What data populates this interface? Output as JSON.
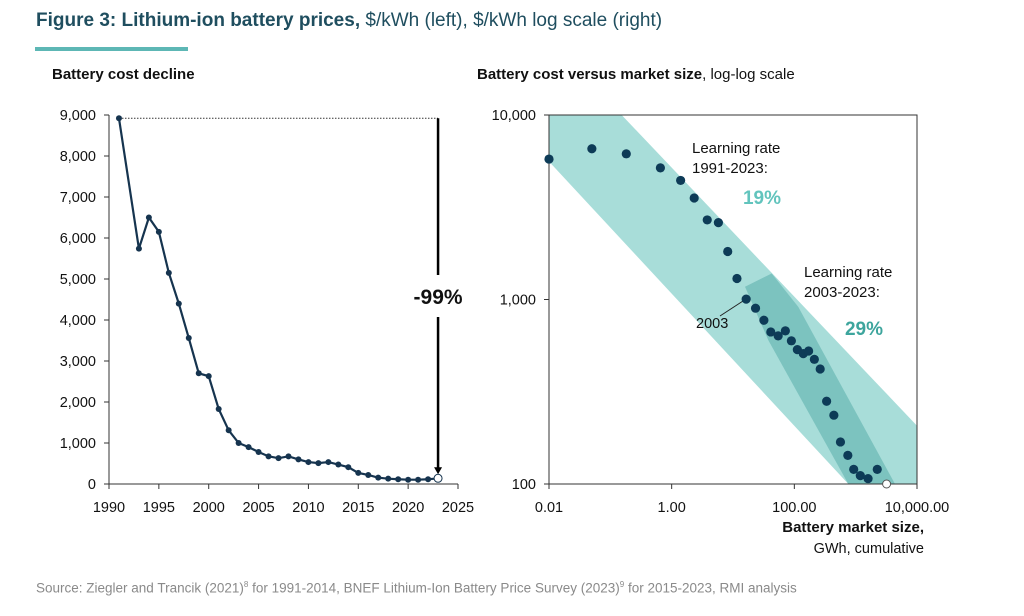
{
  "figure": {
    "title_bold": "Figure 3: Lithium-ion battery prices,",
    "title_rest": " $/kWh (left), $/kWh log scale (right)",
    "source_parts": [
      "Source: Ziegler and Trancik (2021)",
      "8",
      " for 1991-2014, BNEF Lithium-Ion Battery Price Survey (2023)",
      "9",
      " for 2015-2023, RMI analysis"
    ],
    "colors": {
      "title": "#1f4e5f",
      "accent_bar": "#5db7b5",
      "line": "#16344f",
      "dot": "#0d3b57",
      "band_light": "#a8ddd9",
      "band_dark": "#6db9b6",
      "rate19": "#62c4bd",
      "rate29": "#3da59d"
    }
  },
  "chart_data": [
    {
      "type": "line",
      "title": "Battery cost decline",
      "xlim": [
        1990,
        2025
      ],
      "ylim": [
        0,
        9000
      ],
      "xticks": [
        1990,
        1995,
        2000,
        2005,
        2010,
        2015,
        2020,
        2025
      ],
      "xtick_labels": [
        "1990",
        "1995",
        "2000",
        "2005",
        "2010",
        "2015",
        "2020",
        "2025"
      ],
      "yticks": [
        0,
        1000,
        2000,
        3000,
        4000,
        5000,
        6000,
        7000,
        8000,
        9000
      ],
      "ytick_labels": [
        "0",
        "1,000",
        "2,000",
        "3,000",
        "4,000",
        "5,000",
        "6,000",
        "7,000",
        "8,000",
        "9,000"
      ],
      "grid": false,
      "x": [
        1991,
        1993,
        1994,
        1995,
        1996,
        1997,
        1998,
        1999,
        2000,
        2001,
        2002,
        2003,
        2004,
        2005,
        2006,
        2007,
        2008,
        2009,
        2010,
        2011,
        2012,
        2013,
        2014,
        2015,
        2016,
        2017,
        2018,
        2019,
        2020,
        2021,
        2022,
        2023
      ],
      "y": [
        8920,
        5740,
        6500,
        6150,
        5150,
        4400,
        3560,
        2700,
        2630,
        1830,
        1310,
        1000,
        900,
        780,
        675,
        630,
        675,
        600,
        535,
        510,
        535,
        475,
        410,
        270,
        220,
        155,
        130,
        115,
        105,
        105,
        115,
        139
      ],
      "last_point_open": true,
      "annotation": {
        "label": "-99%",
        "from": 8920,
        "to": 139,
        "x": 2023
      }
    },
    {
      "type": "scatter",
      "title_bold": "Battery cost versus market size",
      "title_rest": ", log-log scale",
      "xscale": "log",
      "yscale": "log",
      "xlim": [
        0.01,
        10000
      ],
      "ylim": [
        100,
        10000
      ],
      "xticks": [
        0.01,
        1,
        100,
        10000
      ],
      "xtick_labels": [
        "0.01",
        "1.00",
        "100.00",
        "10,000.00"
      ],
      "yticks": [
        100,
        1000,
        10000
      ],
      "ytick_labels": [
        "100",
        "1,000",
        "10,000"
      ],
      "xlabel_bold": "Battery market size,",
      "xlabel_rest": "GWh, cumulative",
      "grid": false,
      "x": [
        0.01,
        0.05,
        0.182,
        0.655,
        1.4,
        2.33,
        3.8,
        5.78,
        8.2,
        11.6,
        16.4,
        23.3,
        31.9,
        41.3,
        54.5,
        71.4,
        89.5,
        112,
        140,
        171,
        212,
        264,
        336,
        441,
        565,
        745,
        929,
        1191,
        1592,
        2249,
        3192
      ],
      "y": [
        5770,
        6560,
        6160,
        5170,
        4420,
        3550,
        2700,
        2610,
        1820,
        1300,
        1005,
        897,
        772,
        667,
        635,
        676,
        597,
        535,
        509,
        526,
        474,
        420,
        281,
        236,
        169,
        143,
        120,
        111,
        107,
        120,
        100
      ],
      "last_point_open": true,
      "bands": [
        {
          "name": "Learning rate 1991-2023",
          "polygon": [
            [
              0.01,
              10000
            ],
            [
              0.153,
              10000
            ],
            [
              10000,
              207
            ],
            [
              10000,
              100
            ],
            [
              760,
              100
            ],
            [
              0.01,
              5600
            ]
          ]
        },
        {
          "name": "Learning rate 2003-2023",
          "polygon": [
            [
              15.7,
              1172
            ],
            [
              42.7,
              1384
            ],
            [
              116,
              912
            ],
            [
              4375,
              100
            ],
            [
              759,
              100
            ],
            [
              37.7,
              601
            ]
          ]
        }
      ],
      "annotations": {
        "rate1_line1": "Learning rate",
        "rate1_line2": "1991-2023:",
        "rate1_value": "19%",
        "rate2_line1": "Learning rate",
        "rate2_line2": "2003-2023:",
        "rate2_value": "29%",
        "point_label": "2003"
      }
    }
  ]
}
